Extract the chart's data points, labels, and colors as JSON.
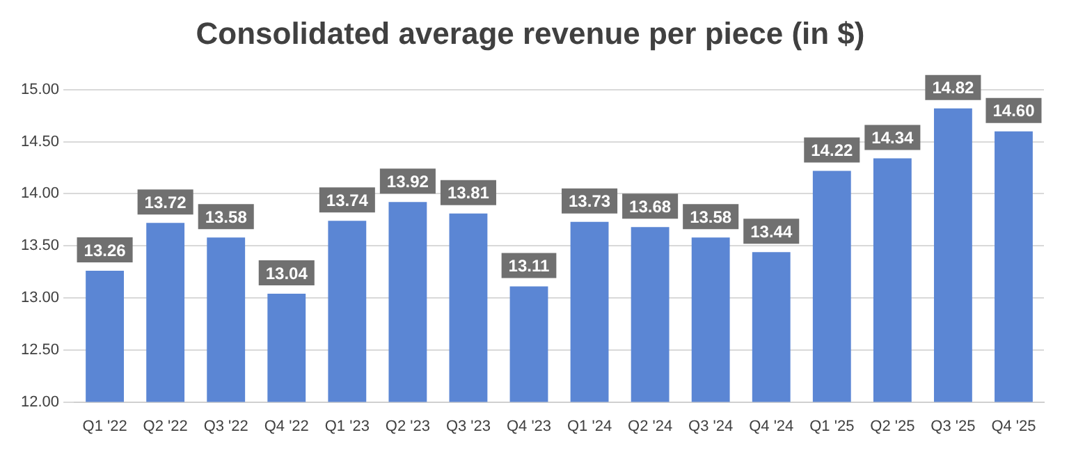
{
  "chart_data": {
    "type": "bar",
    "title": "Consolidated average revenue per piece (in $)",
    "categories": [
      "Q1 '22",
      "Q2 '22",
      "Q3 '22",
      "Q4 '22",
      "Q1 '23",
      "Q2 '23",
      "Q3 '23",
      "Q4 '23",
      "Q1 '24",
      "Q2 '24",
      "Q3 '24",
      "Q4 '24",
      "Q1 '25",
      "Q2 '25",
      "Q3 '25",
      "Q4 '25"
    ],
    "values": [
      13.26,
      13.72,
      13.58,
      13.04,
      13.74,
      13.92,
      13.81,
      13.11,
      13.73,
      13.68,
      13.58,
      13.44,
      14.22,
      14.34,
      14.82,
      14.6
    ],
    "value_labels": [
      "13.26",
      "13.72",
      "13.58",
      "13.04",
      "13.74",
      "13.92",
      "13.81",
      "13.11",
      "13.73",
      "13.68",
      "13.58",
      "13.44",
      "14.22",
      "14.34",
      "14.82",
      "14.60"
    ],
    "color": "#5b86d4",
    "ylim": [
      12,
      15
    ],
    "yticks": [
      {
        "value": 12,
        "label": "12.00"
      },
      {
        "value": 12.5,
        "label": "12.50"
      },
      {
        "value": 13,
        "label": "13.00"
      },
      {
        "value": 13.5,
        "label": "13.50"
      },
      {
        "value": 14,
        "label": "14.00"
      },
      {
        "value": 14.5,
        "label": "14.50"
      },
      {
        "value": 15,
        "label": "15.00"
      }
    ],
    "grid": "y"
  }
}
